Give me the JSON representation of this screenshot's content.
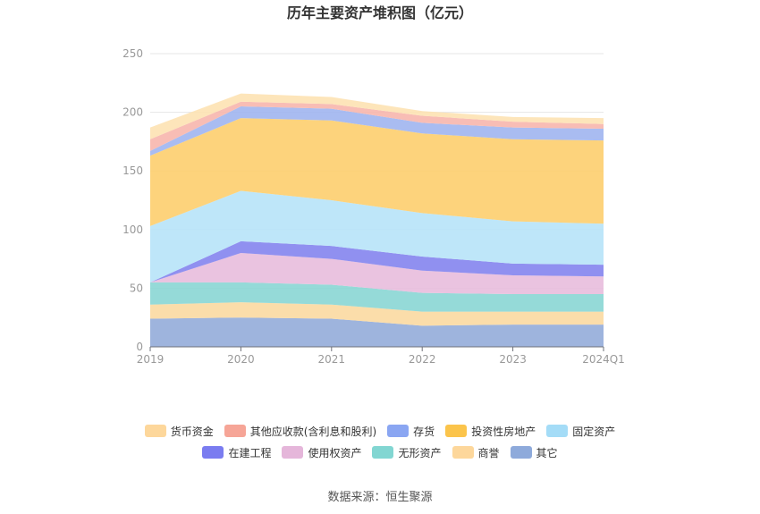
{
  "chart_data": {
    "type": "area",
    "stacked": true,
    "title": "历年主要资产堆积图（亿元）",
    "categories": [
      "2019",
      "2020",
      "2021",
      "2022",
      "2023",
      "2024Q1"
    ],
    "ylim": [
      0,
      250
    ],
    "yticks": [
      0,
      50,
      100,
      150,
      200,
      250
    ],
    "grid": true,
    "legend_position": "bottom",
    "series": [
      {
        "name": "其它",
        "color": "#93acd9",
        "values": [
          24,
          25,
          24,
          18,
          19,
          19
        ]
      },
      {
        "name": "商誉",
        "color": "#fbd9a1",
        "values": [
          12,
          13,
          12,
          12,
          11,
          11
        ]
      },
      {
        "name": "无形资产",
        "color": "#8ad6d4",
        "values": [
          19,
          17,
          17,
          16,
          15,
          15
        ]
      },
      {
        "name": "使用权资产",
        "color": "#e8bcdd",
        "values": [
          0,
          25,
          22,
          19,
          16,
          15
        ]
      },
      {
        "name": "在建工程",
        "color": "#8484ee",
        "values": [
          0,
          10,
          11,
          12,
          10,
          10
        ]
      },
      {
        "name": "固定资产",
        "color": "#b7e3f8",
        "values": [
          48,
          43,
          39,
          37,
          36,
          35
        ]
      },
      {
        "name": "投资性房地产",
        "color": "#fdce6e",
        "values": [
          60,
          62,
          68,
          68,
          70,
          71
        ]
      },
      {
        "name": "存货",
        "color": "#a0b5f0",
        "values": [
          4,
          10,
          10,
          9,
          10,
          10
        ]
      },
      {
        "name": "其他应收款(含利息和股利)",
        "color": "#f7b6ad",
        "values": [
          10,
          4,
          4,
          6,
          5,
          4
        ]
      },
      {
        "name": "货币资金",
        "color": "#fde2b2",
        "values": [
          10,
          7,
          6,
          4,
          4,
          5
        ]
      }
    ],
    "legend_rows": [
      [
        "货币资金",
        "其他应收款(含利息和股利)",
        "存货",
        "投资性房地产",
        "固定资产"
      ],
      [
        "在建工程",
        "使用权资产",
        "无形资产",
        "商誉",
        "其它"
      ]
    ],
    "legend_colors": {
      "货币资金": "#fdd79b",
      "其他应收款(含利息和股利)": "#f6a597",
      "存货": "#8aa6f2",
      "投资性房地产": "#fbc44b",
      "固定资产": "#a4dcf7",
      "在建工程": "#7a7cf0",
      "使用权资产": "#e5b6da",
      "无形资产": "#82d6d2",
      "商誉": "#fdd79b",
      "其它": "#8eaadb"
    }
  },
  "source": "数据来源：恒生聚源"
}
